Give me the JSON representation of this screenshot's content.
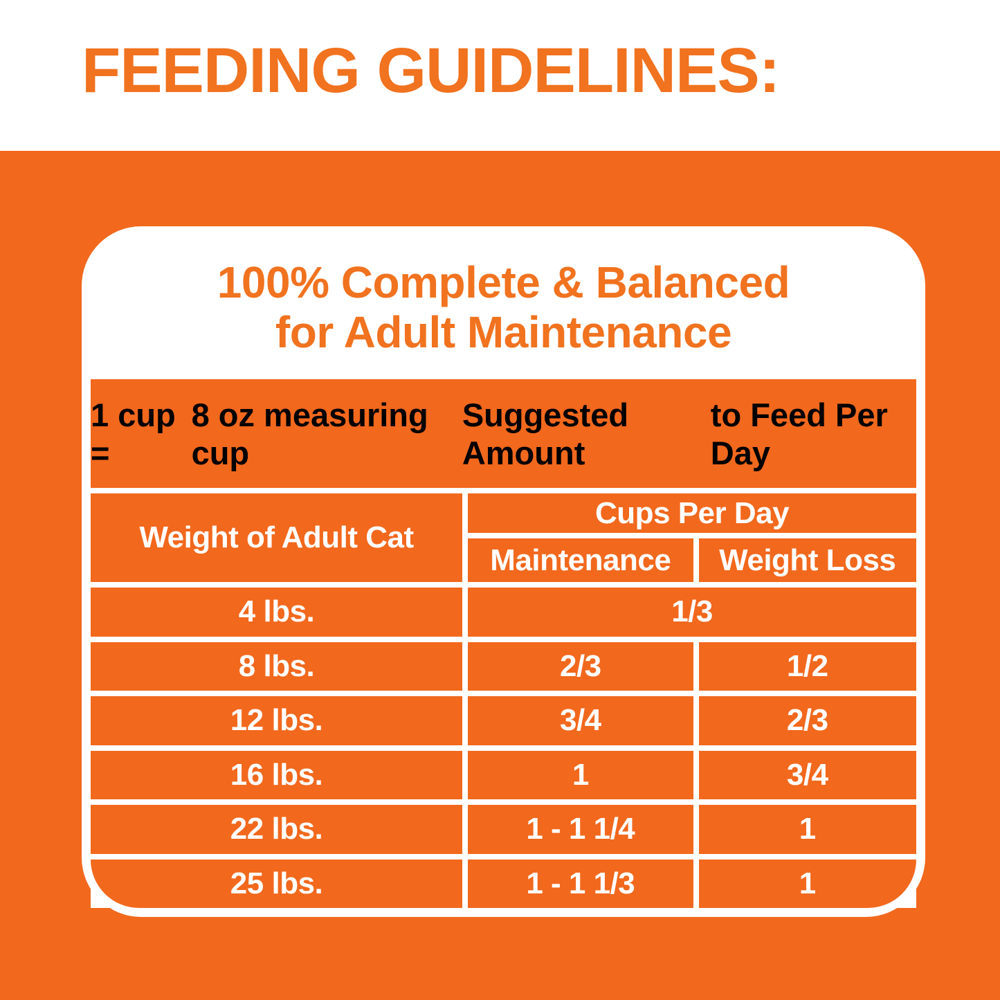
{
  "page": {
    "title": "FEEDING GUIDELINES:",
    "colors": {
      "background_orange": "#F2681D",
      "accent_orange_text": "#F1721F",
      "white": "#FFFFFF"
    }
  },
  "card": {
    "header_line1": "100% Complete & Balanced",
    "header_line2": "for Adult Maintenance",
    "cup_note_line1": "1 cup =",
    "cup_note_line2": "8 oz measuring cup",
    "suggested_line1": "Suggested Amount",
    "suggested_line2": "to Feed Per Day",
    "table": {
      "weight_header": "Weight of Adult Cat",
      "cups_header": "Cups Per Day",
      "col_maintenance": "Maintenance",
      "col_weight_loss": "Weight Loss",
      "rows": [
        {
          "weight": "4 lbs.",
          "maintenance": "1/3",
          "weight_loss": "",
          "value_spans_both": true
        },
        {
          "weight": "8 lbs.",
          "maintenance": "2/3",
          "weight_loss": "1/2",
          "value_spans_both": false
        },
        {
          "weight": "12 lbs.",
          "maintenance": "3/4",
          "weight_loss": "2/3",
          "value_spans_both": false
        },
        {
          "weight": "16 lbs.",
          "maintenance": "1",
          "weight_loss": "3/4",
          "value_spans_both": false
        },
        {
          "weight": "22 lbs.",
          "maintenance": "1 - 1 1/4",
          "weight_loss": "1",
          "value_spans_both": false
        },
        {
          "weight": "25 lbs.",
          "maintenance": "1 - 1 1/3",
          "weight_loss": "1",
          "value_spans_both": false
        }
      ]
    }
  },
  "chart_data": {
    "type": "table",
    "title": "FEEDING GUIDELINES:",
    "subtitle": "100% Complete & Balanced for Adult Maintenance",
    "notes": [
      "1 cup = 8 oz measuring cup",
      "Suggested Amount to Feed Per Day"
    ],
    "column_groups": [
      "Weight of Adult Cat",
      "Cups Per Day"
    ],
    "columns": [
      "Weight of Adult Cat",
      "Maintenance",
      "Weight Loss"
    ],
    "rows": [
      [
        "4 lbs.",
        "1/3",
        "1/3"
      ],
      [
        "8 lbs.",
        "2/3",
        "1/2"
      ],
      [
        "12 lbs.",
        "3/4",
        "2/3"
      ],
      [
        "16 lbs.",
        "1",
        "3/4"
      ],
      [
        "22 lbs.",
        "1 - 1 1/4",
        "1"
      ],
      [
        "25 lbs.",
        "1 - 1 1/3",
        "1"
      ]
    ],
    "layout": "first data row value spans Maintenance and Weight Loss columns"
  }
}
